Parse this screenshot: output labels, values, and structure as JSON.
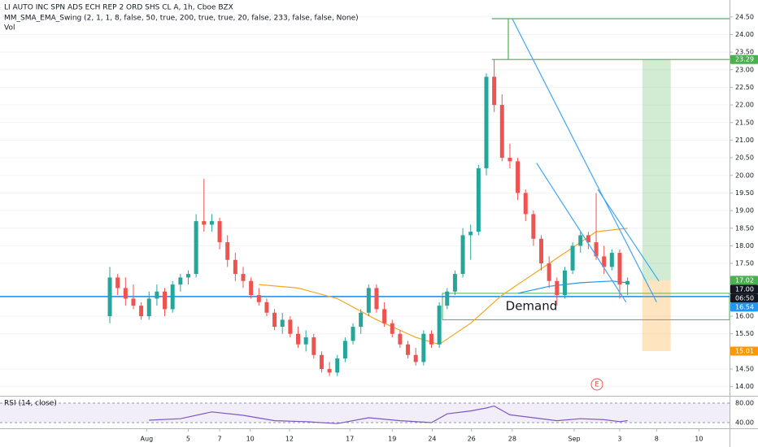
{
  "chart_data": {
    "type": "candlestick",
    "title": "LI AUTO INC SPN ADS ECH REP 2 ORD SHS CL A, 1h, Cboe BZX",
    "indicator": "MM_SMA_EMA_Swing (2, 1, 1, 8, false, 50, true, 200, true, true, 20, false, 233, false, false, None)",
    "volume_label": "Vol",
    "earnings_marker": "E",
    "up_color": "#26a69a",
    "down_color": "#ef5350",
    "xlim": [
      0,
      93
    ],
    "xticks": [
      {
        "value": 18.7,
        "label": "Aug"
      },
      {
        "value": 24,
        "label": "5"
      },
      {
        "value": 28,
        "label": "7"
      },
      {
        "value": 31.9,
        "label": "10"
      },
      {
        "value": 36.9,
        "label": "12"
      },
      {
        "value": 44.6,
        "label": "17"
      },
      {
        "value": 50,
        "label": "19"
      },
      {
        "value": 55.1,
        "label": "24"
      },
      {
        "value": 60.1,
        "label": "26"
      },
      {
        "value": 65.3,
        "label": "28"
      },
      {
        "value": 73.2,
        "label": "Sep"
      },
      {
        "value": 79,
        "label": "3"
      },
      {
        "value": 83.7,
        "label": "8"
      },
      {
        "value": 89.1,
        "label": "10"
      }
    ],
    "ylim": [
      13.74,
      24.98
    ],
    "yticks": [
      {
        "value": 14,
        "label": "14.00"
      },
      {
        "value": 14.5,
        "label": "14.50"
      },
      {
        "value": 15.5,
        "label": "15.50"
      },
      {
        "value": 16,
        "label": "16.00"
      },
      {
        "value": 17.5,
        "label": "17.50"
      },
      {
        "value": 18,
        "label": "18.00"
      },
      {
        "value": 18.5,
        "label": "18.50"
      },
      {
        "value": 19,
        "label": "19.00"
      },
      {
        "value": 19.5,
        "label": "19.50"
      },
      {
        "value": 20,
        "label": "20.00"
      },
      {
        "value": 20.5,
        "label": "20.50"
      },
      {
        "value": 21,
        "label": "21.00"
      },
      {
        "value": 21.5,
        "label": "21.50"
      },
      {
        "value": 22,
        "label": "22.00"
      },
      {
        "value": 22.5,
        "label": "22.50"
      },
      {
        "value": 23,
        "label": "23.00"
      },
      {
        "value": 23.5,
        "label": "23.50"
      },
      {
        "value": 24,
        "label": "24.00"
      },
      {
        "value": 24.5,
        "label": "24.50"
      }
    ],
    "x": [
      14,
      15,
      16,
      17,
      18,
      19,
      20,
      21,
      22,
      23,
      24,
      25,
      26,
      27,
      28,
      29,
      30,
      31,
      32,
      33,
      34,
      35,
      36,
      37,
      38,
      39,
      40,
      41,
      42,
      43,
      44,
      45,
      46,
      47,
      48,
      49,
      50,
      51,
      52,
      53,
      54,
      55,
      56,
      57,
      58,
      59,
      60,
      61,
      62,
      63,
      64,
      65,
      66,
      67,
      68,
      69,
      70,
      71,
      72,
      73,
      74,
      75,
      76,
      77,
      78,
      79,
      80
    ],
    "open": [
      16.0,
      17.1,
      16.8,
      16.5,
      16.3,
      16.0,
      16.5,
      16.7,
      16.2,
      16.9,
      17.1,
      17.2,
      18.7,
      18.6,
      18.7,
      18.1,
      17.6,
      17.2,
      17.0,
      16.6,
      16.4,
      16.1,
      15.7,
      15.9,
      15.5,
      15.2,
      15.4,
      14.9,
      14.5,
      14.4,
      14.8,
      15.3,
      15.7,
      16.1,
      16.8,
      16.2,
      15.8,
      15.5,
      15.2,
      14.9,
      14.7,
      15.5,
      15.2,
      16.3,
      16.7,
      17.2,
      18.3,
      18.4,
      20.2,
      22.8,
      22.0,
      20.5,
      20.4,
      19.5,
      18.9,
      18.2,
      17.5,
      17.0,
      16.6,
      17.3,
      18.0,
      18.3,
      18.1,
      17.7,
      17.4,
      17.8,
      16.9
    ],
    "high": [
      17.4,
      17.2,
      17.1,
      16.9,
      16.4,
      16.7,
      16.9,
      16.8,
      17.0,
      17.2,
      17.3,
      18.9,
      19.9,
      18.9,
      18.8,
      18.3,
      17.8,
      17.4,
      17.1,
      16.8,
      16.5,
      16.2,
      16.1,
      16.0,
      15.7,
      15.6,
      15.5,
      15.0,
      14.7,
      14.9,
      15.4,
      15.8,
      16.2,
      16.9,
      16.9,
      16.4,
      15.9,
      15.6,
      15.3,
      15.1,
      15.6,
      15.6,
      16.4,
      16.8,
      17.3,
      18.5,
      18.6,
      20.3,
      22.9,
      23.29,
      22.3,
      20.9,
      20.5,
      19.6,
      19.0,
      18.3,
      17.7,
      17.1,
      17.4,
      18.1,
      18.4,
      18.4,
      19.5,
      18.0,
      17.9,
      17.9,
      17.1
    ],
    "low": [
      15.8,
      16.6,
      16.3,
      16.2,
      15.9,
      15.9,
      16.3,
      16.0,
      16.1,
      16.7,
      16.9,
      17.1,
      18.4,
      18.4,
      17.9,
      17.4,
      17.0,
      16.8,
      16.5,
      16.3,
      16.0,
      15.6,
      15.5,
      15.4,
      15.1,
      15.0,
      14.8,
      14.4,
      14.3,
      14.3,
      14.7,
      15.2,
      15.5,
      16.0,
      16.1,
      15.7,
      15.4,
      15.1,
      14.8,
      14.6,
      14.6,
      15.1,
      15.1,
      16.2,
      16.6,
      17.1,
      17.6,
      18.3,
      20.0,
      21.8,
      20.4,
      20.2,
      19.3,
      18.7,
      18.0,
      17.3,
      16.8,
      16.3,
      16.5,
      17.2,
      17.8,
      17.9,
      17.6,
      17.2,
      17.3,
      16.5,
      16.6
    ],
    "close": [
      17.1,
      16.8,
      16.5,
      16.3,
      16.0,
      16.5,
      16.7,
      16.2,
      16.9,
      17.1,
      17.2,
      18.7,
      18.6,
      18.7,
      18.1,
      17.6,
      17.2,
      17.0,
      16.6,
      16.4,
      16.1,
      15.7,
      15.9,
      15.5,
      15.2,
      15.4,
      14.9,
      14.5,
      14.4,
      14.8,
      15.3,
      15.7,
      16.1,
      16.8,
      16.2,
      15.8,
      15.5,
      15.2,
      14.9,
      14.7,
      15.5,
      15.2,
      16.3,
      16.7,
      17.2,
      18.3,
      18.4,
      20.2,
      22.8,
      22.0,
      20.5,
      20.4,
      19.5,
      18.9,
      18.2,
      17.5,
      17.0,
      16.6,
      17.3,
      18.0,
      18.3,
      18.1,
      17.7,
      17.4,
      17.8,
      16.9,
      17.0
    ],
    "lines": [
      {
        "color": "#f5a623",
        "x": [
          33,
          38,
          43,
          48,
          53,
          56,
          60,
          64,
          68,
          72,
          76,
          80
        ],
        "values": [
          16.9,
          16.8,
          16.5,
          15.9,
          15.4,
          15.2,
          15.8,
          16.6,
          17.2,
          17.8,
          18.4,
          18.5
        ]
      },
      {
        "color": "#2196f3",
        "x": [
          66,
          70,
          74,
          78,
          80
        ],
        "values": [
          16.65,
          16.85,
          16.95,
          17.0,
          16.95
        ]
      }
    ],
    "level": {
      "value": 16.56,
      "color": "#1e88e5"
    },
    "demand": {
      "label": "Demand",
      "x": [
        56.4,
        93
      ],
      "range": [
        16.65,
        15.9
      ]
    },
    "position": {
      "x": [
        81.9,
        85.5
      ],
      "target": 23.29,
      "entry": 17.02,
      "stop": 15.01
    },
    "drawings": [
      {
        "color": "#4caf50",
        "x": [
          62.7,
          93
        ],
        "values": [
          24.45,
          24.45
        ]
      },
      {
        "color": "#4caf50",
        "x": [
          62.7,
          93
        ],
        "values": [
          23.29,
          23.29
        ]
      },
      {
        "color": "#4caf50",
        "x": [
          64.8,
          64.8
        ],
        "values": [
          23.29,
          24.45
        ]
      },
      {
        "color": "#42a5f5",
        "x": [
          65.3,
          83.7
        ],
        "values": [
          24.45,
          16.4
        ]
      },
      {
        "color": "#42a5f5",
        "x": [
          68.4,
          79.8
        ],
        "values": [
          20.35,
          16.4
        ]
      },
      {
        "color": "#42a5f5",
        "x": [
          76.2,
          84
        ],
        "values": [
          19.6,
          17.0
        ]
      }
    ],
    "price_labels": [
      {
        "value": 23.29,
        "label": "23.29",
        "color": "#4caf50"
      },
      {
        "value": 17.02,
        "label": "17.02",
        "color": "#4caf50"
      },
      {
        "value": 17.0,
        "label": "17.00",
        "color": "#131722"
      },
      {
        "label": "06:50",
        "color": "#131722"
      },
      {
        "value": 16.54,
        "label": "16.54",
        "color": "#2196f3"
      },
      {
        "value": 15.01,
        "label": "15.01",
        "color": "#ff9800"
      }
    ],
    "rsi": {
      "title": "RSI (14, close)",
      "color": "#7e57c2",
      "ylim": [
        28.3,
        93.3
      ],
      "yticks": [
        {
          "value": 80,
          "label": "80.00"
        },
        {
          "value": 40,
          "label": "40.00"
        }
      ],
      "x": [
        19,
        23,
        27,
        31,
        35,
        39,
        43,
        47,
        51,
        55,
        57,
        60,
        62,
        63,
        65,
        68,
        71,
        74,
        77,
        79,
        80
      ],
      "values": [
        45,
        48,
        62,
        55,
        44,
        42,
        38,
        50,
        44,
        40,
        58,
        64,
        70,
        74,
        56,
        50,
        44,
        48,
        46,
        42,
        44
      ]
    }
  }
}
